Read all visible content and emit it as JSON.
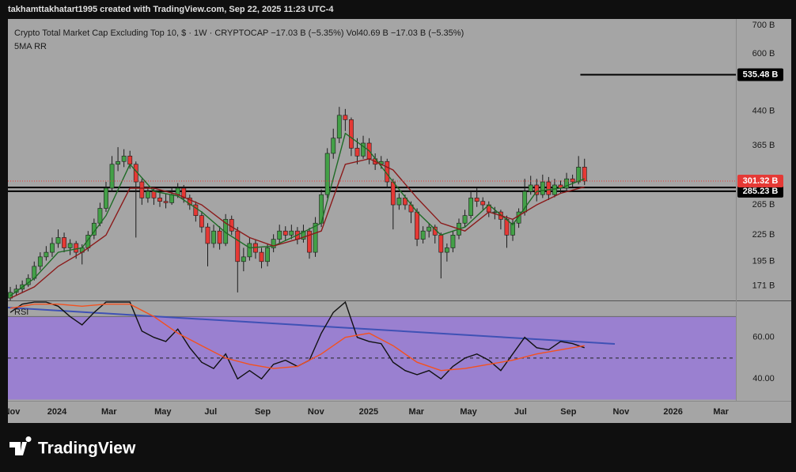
{
  "header": "takhamttakhatart1995 created with TradingView.com, Sep 22, 2025 11:23 UTC-4",
  "footer": {
    "logo_text": "TradingView"
  },
  "chart_data": [
    {
      "type": "candlestick",
      "title": "Crypto Total Market Cap Excluding Top 10, $ · 1W · CRYPTOCAP  −17.03 B (−5.35%)  Vol40.69 B  −17.03 B (−5.35%)",
      "subtitle": "5MA RR",
      "log_scale": true,
      "up_color": "#43a047",
      "down_color": "#e53935",
      "xlim": [
        -0.4,
        121.3
      ],
      "ylim": [
        158,
        724
      ],
      "yticks": [
        {
          "value": 700,
          "label": "700 B"
        },
        {
          "value": 600,
          "label": "600 B"
        },
        {
          "value": 440,
          "label": "440 B"
        },
        {
          "value": 365,
          "label": "365 B"
        },
        {
          "value": 265,
          "label": "265 B"
        },
        {
          "value": 225,
          "label": "225 B"
        },
        {
          "value": 195,
          "label": "195 B"
        },
        {
          "value": 171,
          "label": "171 B"
        }
      ],
      "xticks": [
        {
          "value": 0.26,
          "label": "Nov"
        },
        {
          "value": 7.8,
          "label": "2024"
        },
        {
          "value": 16.5,
          "label": "Mar"
        },
        {
          "value": 25.5,
          "label": "May"
        },
        {
          "value": 33.5,
          "label": "Jul"
        },
        {
          "value": 42.2,
          "label": "Sep"
        },
        {
          "value": 51.1,
          "label": "Nov"
        },
        {
          "value": 59.9,
          "label": "2025"
        },
        {
          "value": 67.9,
          "label": "Mar"
        },
        {
          "value": 76.6,
          "label": "May"
        },
        {
          "value": 85.3,
          "label": "Jul"
        },
        {
          "value": 93.3,
          "label": "Sep"
        },
        {
          "value": 102.1,
          "label": "Nov"
        },
        {
          "value": 110.8,
          "label": "2026"
        },
        {
          "value": 118.8,
          "label": "Mar"
        }
      ],
      "ohlc": [
        [
          160,
          170,
          158,
          165
        ],
        [
          165,
          172,
          162,
          168
        ],
        [
          168,
          176,
          165,
          172
        ],
        [
          172,
          182,
          170,
          178
        ],
        [
          178,
          195,
          176,
          190
        ],
        [
          190,
          205,
          186,
          200
        ],
        [
          200,
          212,
          196,
          205
        ],
        [
          205,
          222,
          200,
          215
        ],
        [
          215,
          232,
          210,
          222
        ],
        [
          222,
          228,
          205,
          210
        ],
        [
          210,
          220,
          202,
          215
        ],
        [
          215,
          218,
          198,
          205
        ],
        [
          205,
          214,
          192,
          210
        ],
        [
          210,
          230,
          206,
          225
        ],
        [
          225,
          246,
          220,
          240
        ],
        [
          240,
          268,
          236,
          260
        ],
        [
          260,
          300,
          255,
          290
        ],
        [
          290,
          345,
          285,
          330
        ],
        [
          330,
          362,
          318,
          335
        ],
        [
          335,
          358,
          325,
          345
        ],
        [
          345,
          355,
          322,
          330
        ],
        [
          330,
          335,
          222,
          300
        ],
        [
          300,
          305,
          265,
          275
        ],
        [
          275,
          292,
          268,
          285
        ],
        [
          285,
          290,
          265,
          275
        ],
        [
          275,
          285,
          262,
          270
        ],
        [
          270,
          282,
          260,
          268
        ],
        [
          268,
          292,
          265,
          280
        ],
        [
          280,
          298,
          275,
          290
        ],
        [
          290,
          295,
          268,
          275
        ],
        [
          275,
          280,
          258,
          265
        ],
        [
          265,
          270,
          242,
          250
        ],
        [
          250,
          256,
          228,
          235
        ],
        [
          235,
          240,
          190,
          215
        ],
        [
          215,
          238,
          210,
          230
        ],
        [
          230,
          236,
          208,
          215
        ],
        [
          215,
          252,
          212,
          245
        ],
        [
          245,
          250,
          225,
          230
        ],
        [
          230,
          235,
          165,
          195
        ],
        [
          195,
          210,
          185,
          200
        ],
        [
          200,
          222,
          196,
          215
        ],
        [
          215,
          220,
          198,
          205
        ],
        [
          205,
          210,
          188,
          195
        ],
        [
          195,
          215,
          190,
          210
        ],
        [
          210,
          226,
          205,
          220
        ],
        [
          220,
          238,
          215,
          230
        ],
        [
          230,
          236,
          218,
          225
        ],
        [
          225,
          238,
          220,
          230
        ],
        [
          230,
          235,
          214,
          220
        ],
        [
          220,
          238,
          216,
          230
        ],
        [
          230,
          234,
          198,
          205
        ],
        [
          205,
          248,
          200,
          240
        ],
        [
          240,
          288,
          235,
          280
        ],
        [
          280,
          360,
          275,
          350
        ],
        [
          350,
          400,
          340,
          380
        ],
        [
          380,
          450,
          370,
          430
        ],
        [
          430,
          445,
          395,
          420
        ],
        [
          420,
          425,
          345,
          360
        ],
        [
          360,
          380,
          330,
          345
        ],
        [
          345,
          385,
          340,
          370
        ],
        [
          370,
          380,
          330,
          340
        ],
        [
          340,
          350,
          320,
          330
        ],
        [
          330,
          345,
          322,
          335
        ],
        [
          335,
          340,
          290,
          300
        ],
        [
          300,
          305,
          232,
          265
        ],
        [
          265,
          282,
          258,
          275
        ],
        [
          275,
          280,
          258,
          265
        ],
        [
          265,
          270,
          240,
          255
        ],
        [
          255,
          260,
          212,
          220
        ],
        [
          220,
          236,
          215,
          230
        ],
        [
          230,
          240,
          222,
          235
        ],
        [
          235,
          238,
          215,
          225
        ],
        [
          225,
          228,
          178,
          205
        ],
        [
          205,
          215,
          195,
          210
        ],
        [
          210,
          230,
          205,
          225
        ],
        [
          225,
          246,
          220,
          240
        ],
        [
          240,
          258,
          235,
          250
        ],
        [
          250,
          285,
          246,
          275
        ],
        [
          275,
          290,
          262,
          270
        ],
        [
          270,
          276,
          258,
          265
        ],
        [
          265,
          270,
          248,
          255
        ],
        [
          255,
          262,
          245,
          255
        ],
        [
          255,
          258,
          232,
          245
        ],
        [
          245,
          250,
          210,
          225
        ],
        [
          225,
          245,
          218,
          240
        ],
        [
          240,
          260,
          234,
          255
        ],
        [
          255,
          305,
          250,
          285
        ],
        [
          285,
          310,
          280,
          295
        ],
        [
          295,
          305,
          270,
          280
        ],
        [
          280,
          312,
          275,
          300
        ],
        [
          300,
          308,
          272,
          280
        ],
        [
          280,
          305,
          276,
          295
        ],
        [
          295,
          302,
          282,
          290
        ],
        [
          290,
          315,
          285,
          305
        ],
        [
          305,
          312,
          292,
          300
        ],
        [
          300,
          345,
          296,
          325
        ],
        [
          325,
          340,
          295,
          301.32
        ]
      ],
      "series": [
        {
          "color": "#1f6b26",
          "x": [
            0,
            4,
            8,
            12,
            16,
            20,
            24,
            28,
            32,
            36,
            40,
            44,
            48,
            52,
            56,
            60,
            64,
            68,
            72,
            76,
            80,
            84,
            88,
            92,
            96
          ],
          "values": [
            162,
            178,
            205,
            210,
            250,
            330,
            285,
            278,
            255,
            228,
            210,
            212,
            225,
            240,
            390,
            355,
            300,
            255,
            225,
            235,
            265,
            238,
            285,
            290,
            305
          ]
        },
        {
          "color": "#8b1a1a",
          "x": [
            0,
            4,
            8,
            12,
            16,
            20,
            24,
            28,
            32,
            36,
            40,
            44,
            48,
            52,
            56,
            60,
            64,
            68,
            72,
            76,
            80,
            84,
            88,
            92,
            96
          ],
          "values": [
            160,
            170,
            190,
            205,
            225,
            290,
            290,
            280,
            265,
            240,
            222,
            212,
            220,
            230,
            330,
            340,
            320,
            275,
            240,
            230,
            255,
            245,
            265,
            282,
            292
          ]
        }
      ],
      "levels": [
        {
          "value": 535.48,
          "label": "535.48 B",
          "from": 95.3
        },
        {
          "value": 285.23,
          "label": "285.23 B"
        },
        {
          "value": 291
        }
      ],
      "last_price": {
        "value": 301.32,
        "label": "301.32 B",
        "color": "#e53935"
      }
    },
    {
      "type": "line",
      "label": "RSI",
      "xlim": [
        -0.4,
        121.3
      ],
      "ylim": [
        29.4,
        77.4
      ],
      "yticks": [
        {
          "value": 60,
          "label": "60.00"
        },
        {
          "value": 40,
          "label": "40.00"
        }
      ],
      "band": [
        30,
        70
      ],
      "band_color": "#9a80d0",
      "midline": 50,
      "series": [
        {
          "color": "#111111",
          "x": [
            0,
            2,
            4,
            6,
            8,
            10,
            12,
            14,
            16,
            18,
            20,
            22,
            24,
            26,
            28,
            30,
            32,
            34,
            36,
            38,
            40,
            42,
            44,
            46,
            48,
            50,
            52,
            54,
            56,
            58,
            60,
            62,
            64,
            66,
            68,
            70,
            72,
            74,
            76,
            78,
            80,
            82,
            84,
            86,
            88,
            90,
            92,
            94,
            96
          ],
          "values": [
            72,
            76,
            77,
            77,
            75,
            70,
            66,
            72,
            77,
            77,
            77,
            63,
            60,
            58,
            64,
            55,
            48,
            45,
            52,
            40,
            44,
            40,
            47,
            49,
            46,
            49,
            62,
            72,
            77,
            60,
            58,
            57,
            48,
            44,
            42,
            44,
            40,
            46,
            50,
            52,
            49,
            44,
            52,
            60,
            55,
            54,
            58,
            57,
            55
          ]
        },
        {
          "color": "#f4511e",
          "x": [
            0,
            4,
            8,
            12,
            16,
            20,
            24,
            28,
            32,
            36,
            40,
            44,
            48,
            52,
            56,
            60,
            64,
            68,
            72,
            76,
            80,
            84,
            88,
            92,
            96
          ],
          "values": [
            74,
            76,
            76,
            75,
            76,
            76,
            70,
            62,
            56,
            50,
            47,
            45,
            46,
            52,
            60,
            62,
            56,
            48,
            44,
            45,
            47,
            49,
            52,
            54,
            56
          ]
        }
      ]
    }
  ]
}
